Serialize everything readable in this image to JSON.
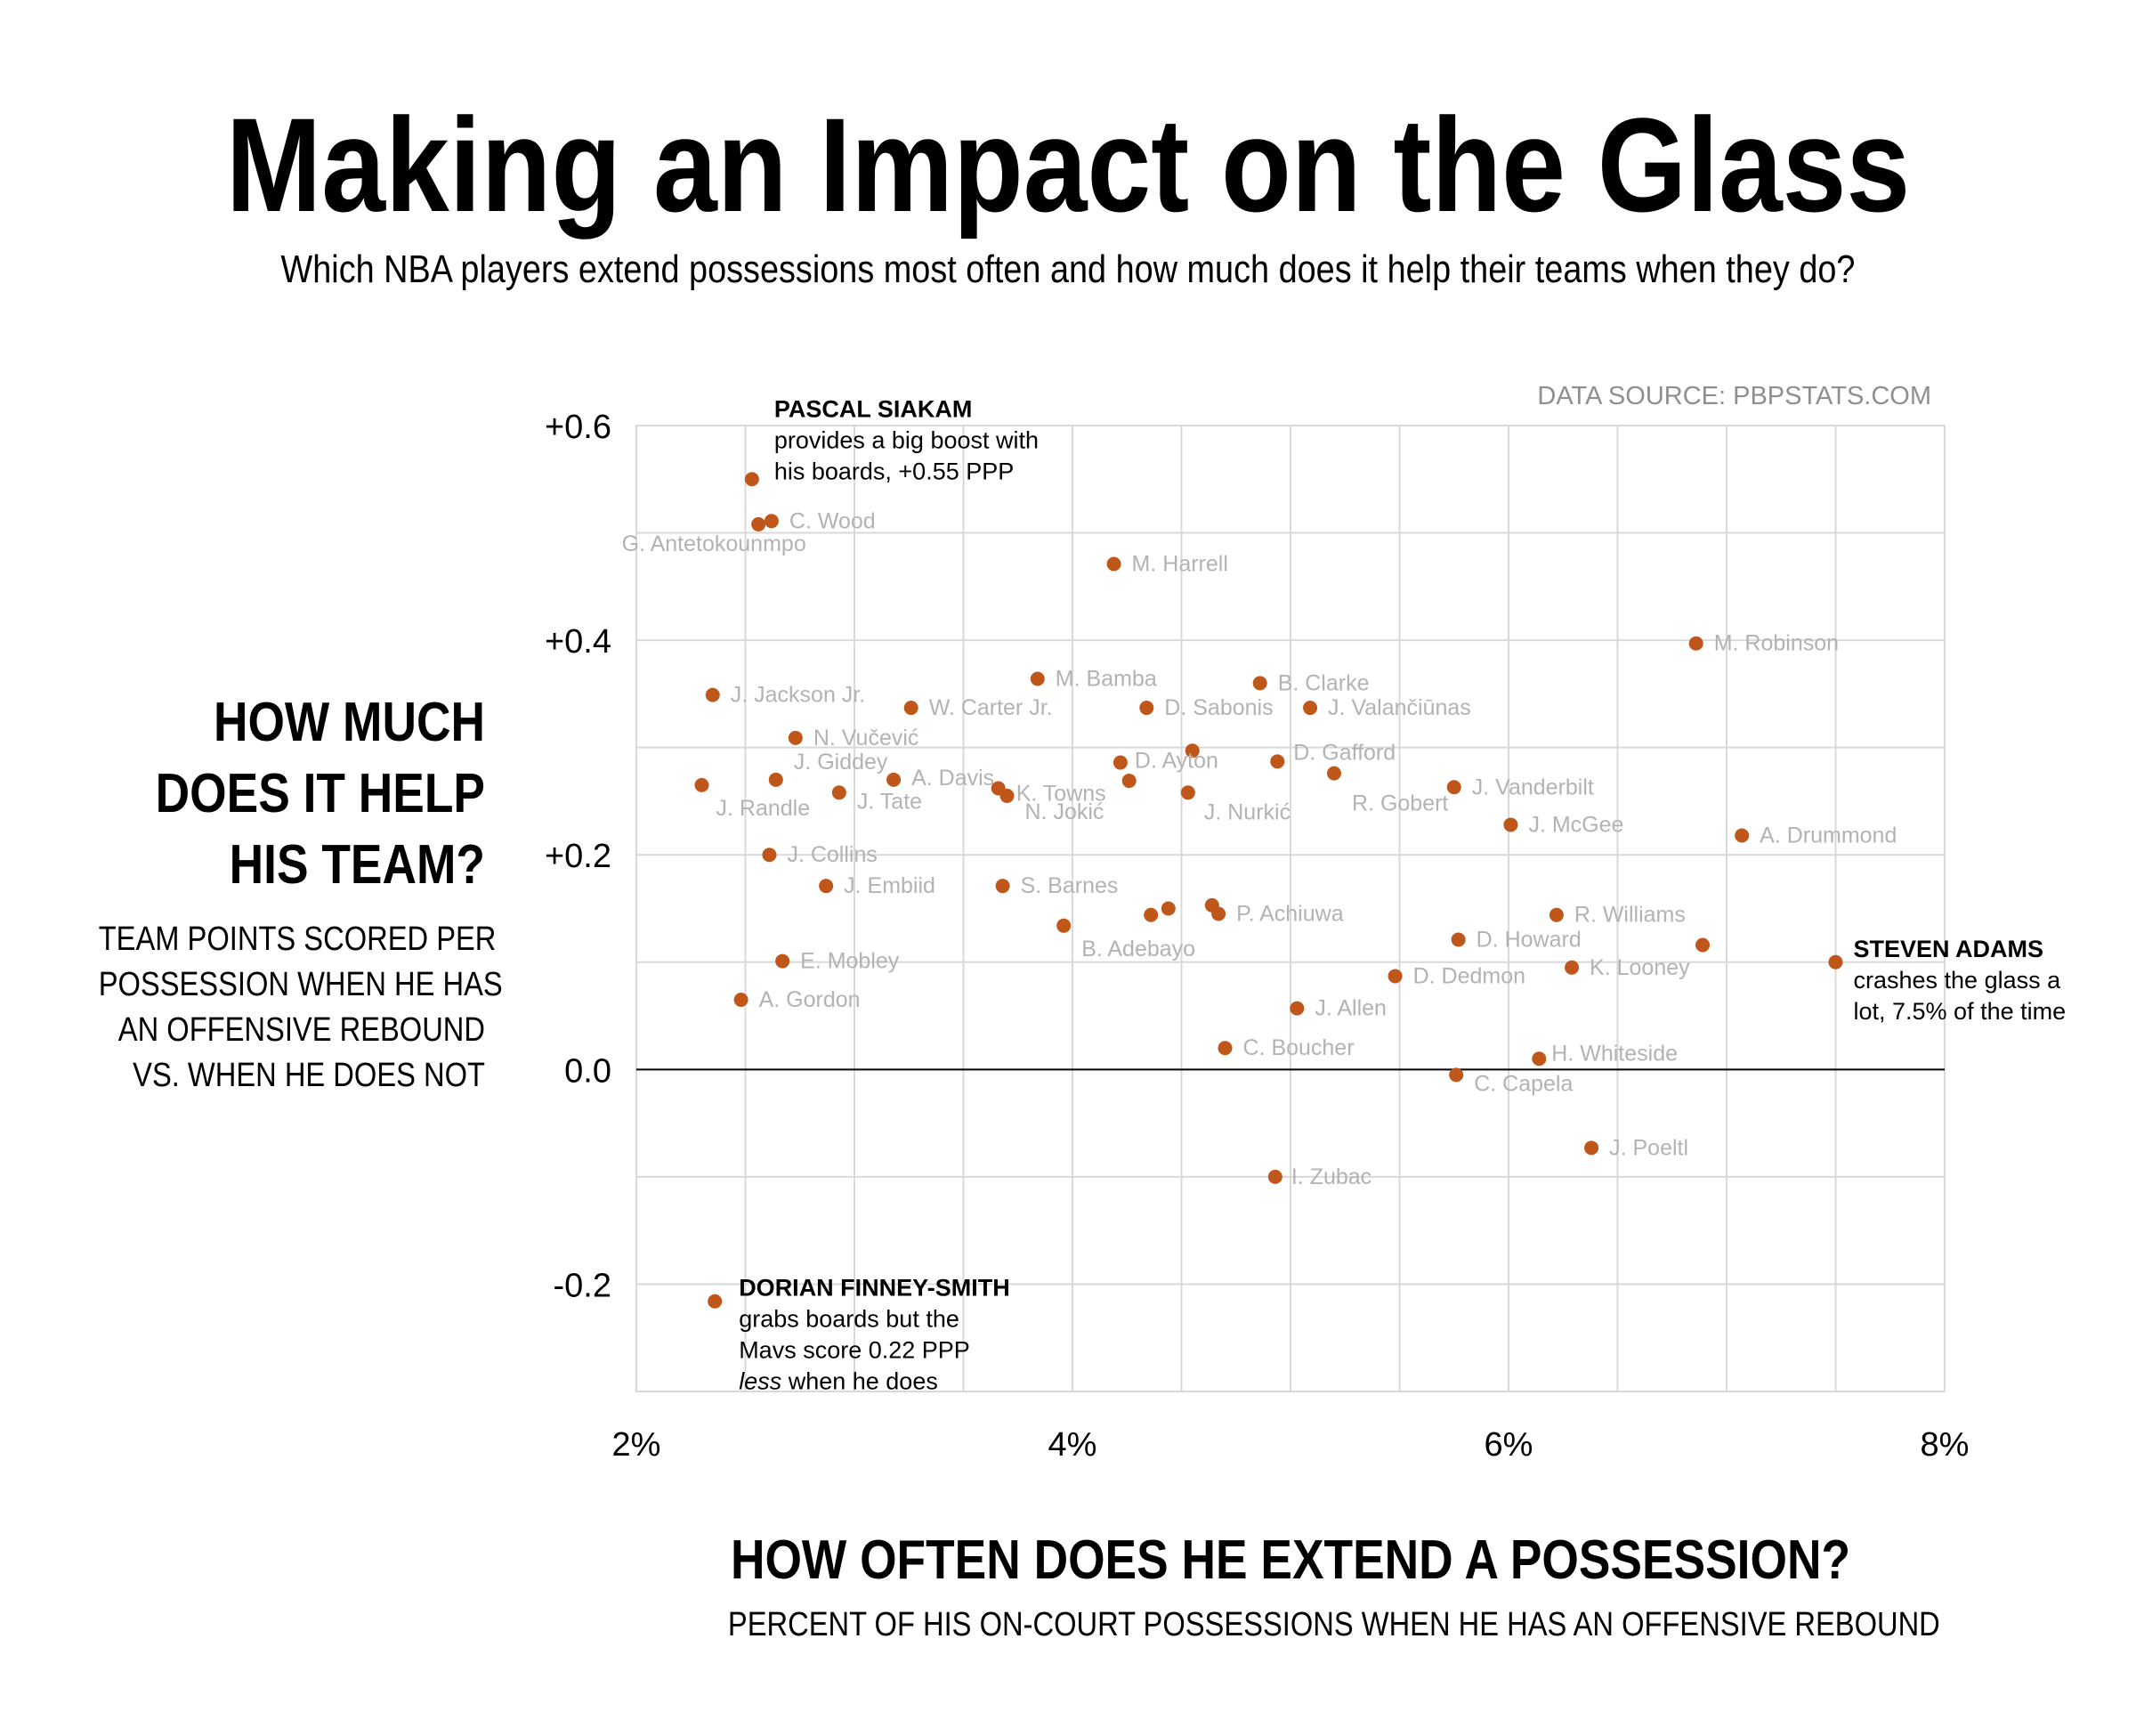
{
  "header": {
    "title": "Making an Impact on the Glass",
    "subtitle": "Which NBA players extend possessions most often and how much does it help their teams when they do?"
  },
  "source": "DATA SOURCE: PBPSTATS.COM",
  "y_axis": {
    "title_lines": [
      "HOW MUCH",
      "DOES IT HELP",
      "HIS TEAM?"
    ],
    "subtitle_lines": [
      "TEAM POINTS SCORED PER",
      "POSSESSION WHEN HE HAS",
      "AN OFFENSIVE REBOUND",
      "VS. WHEN HE DOES NOT"
    ]
  },
  "x_axis": {
    "title": "HOW OFTEN DOES HE EXTEND A POSSESSION?",
    "subtitle": "PERCENT OF HIS ON-COURT POSSESSIONS WHEN HE HAS AN OFFENSIVE REBOUND"
  },
  "colors": {
    "point": "#c0571a",
    "label": "#b3b3b3",
    "grid": "#d9d9d9",
    "zero_line": "#000000"
  },
  "chart_data": {
    "type": "scatter",
    "xlim": [
      2,
      8
    ],
    "ylim": [
      -0.3,
      0.6
    ],
    "x_ticks": [
      2,
      4,
      6,
      8
    ],
    "x_tick_labels": [
      "2%",
      "4%",
      "6%",
      "8%"
    ],
    "x_minor_gridlines": [
      2.5,
      3,
      3.5,
      4,
      4.5,
      5,
      5.5,
      6,
      6.5,
      7,
      7.5,
      8
    ],
    "y_ticks": [
      0.6,
      0.4,
      0.2,
      0,
      -0.2
    ],
    "y_tick_labels": [
      "+0.6",
      "+0.4",
      "+0.2",
      "0.0",
      "-0.2"
    ],
    "y_minor_gridlines": [
      0.6,
      0.5,
      0.4,
      0.3,
      0.2,
      0.1,
      -0.1,
      -0.2
    ],
    "grid": true,
    "points": [
      {
        "name": "G. Antetokounmpo",
        "x": 2.56,
        "y": 0.508
      },
      {
        "name": "C. Wood",
        "x": 2.62,
        "y": 0.511
      },
      {
        "name": "M. Harrell",
        "x": 4.19,
        "y": 0.471
      },
      {
        "name": "M. Robinson",
        "x": 6.86,
        "y": 0.397
      },
      {
        "name": "J. Jackson Jr.",
        "x": 2.35,
        "y": 0.349
      },
      {
        "name": "W. Carter Jr.",
        "x": 3.26,
        "y": 0.337
      },
      {
        "name": "M. Bamba",
        "x": 3.84,
        "y": 0.364
      },
      {
        "name": "D. Sabonis",
        "x": 4.34,
        "y": 0.337
      },
      {
        "name": "B. Clarke",
        "x": 4.86,
        "y": 0.36
      },
      {
        "name": "J. Valančiūnas",
        "x": 5.09,
        "y": 0.337
      },
      {
        "name": "N. Vučević",
        "x": 2.73,
        "y": 0.309
      },
      {
        "name": "J. Giddey",
        "x": 2.64,
        "y": 0.27
      },
      {
        "name": "A. Davis",
        "x": 3.18,
        "y": 0.27
      },
      {
        "name": "J. Randle",
        "x": 2.3,
        "y": 0.265
      },
      {
        "name": "J. Tate",
        "x": 2.93,
        "y": 0.258
      },
      {
        "name": "K. Towns",
        "x": 3.66,
        "y": 0.262
      },
      {
        "name": "N. Jokić",
        "x": 3.7,
        "y": 0.255
      },
      {
        "name": "D. Ayton",
        "x": 4.22,
        "y": 0.286
      },
      {
        "name": "",
        "x": 4.26,
        "y": 0.269
      },
      {
        "name": "",
        "x": 4.55,
        "y": 0.297
      },
      {
        "name": "J. Nurkić",
        "x": 4.53,
        "y": 0.258
      },
      {
        "name": "D. Gafford",
        "x": 4.94,
        "y": 0.287
      },
      {
        "name": "R. Gobert",
        "x": 5.2,
        "y": 0.276
      },
      {
        "name": "J. Vanderbilt",
        "x": 5.75,
        "y": 0.263
      },
      {
        "name": "J. McGee",
        "x": 6.01,
        "y": 0.228
      },
      {
        "name": "A. Drummond",
        "x": 7.07,
        "y": 0.218
      },
      {
        "name": "J. Collins",
        "x": 2.61,
        "y": 0.2
      },
      {
        "name": "J. Embiid",
        "x": 2.87,
        "y": 0.171
      },
      {
        "name": "S. Barnes",
        "x": 3.68,
        "y": 0.171
      },
      {
        "name": "B. Adebayo",
        "x": 3.96,
        "y": 0.134
      },
      {
        "name": "",
        "x": 4.36,
        "y": 0.144
      },
      {
        "name": "",
        "x": 4.44,
        "y": 0.15
      },
      {
        "name": "",
        "x": 4.64,
        "y": 0.153
      },
      {
        "name": "P. Achiuwa",
        "x": 4.67,
        "y": 0.145
      },
      {
        "name": "R. Williams",
        "x": 6.22,
        "y": 0.144
      },
      {
        "name": "D. Howard",
        "x": 5.77,
        "y": 0.121
      },
      {
        "name": "",
        "x": 6.89,
        "y": 0.116
      },
      {
        "name": "K. Looney",
        "x": 6.29,
        "y": 0.095
      },
      {
        "name": "D. Dedmon",
        "x": 5.48,
        "y": 0.087
      },
      {
        "name": "E. Mobley",
        "x": 2.67,
        "y": 0.101
      },
      {
        "name": "A. Gordon",
        "x": 2.48,
        "y": 0.065
      },
      {
        "name": "J. Allen",
        "x": 5.03,
        "y": 0.057
      },
      {
        "name": "C. Boucher",
        "x": 4.7,
        "y": 0.02
      },
      {
        "name": "H. Whiteside",
        "x": 6.14,
        "y": 0.01
      },
      {
        "name": "C. Capela",
        "x": 5.76,
        "y": -0.005
      },
      {
        "name": "J. Poeltl",
        "x": 6.38,
        "y": -0.073
      },
      {
        "name": "I. Zubac",
        "x": 4.93,
        "y": -0.1
      },
      {
        "name": "PASCAL SIAKAM",
        "x": 2.53,
        "y": 0.55,
        "highlight": true
      },
      {
        "name": "STEVEN ADAMS",
        "x": 7.5,
        "y": 0.1,
        "highlight": true
      },
      {
        "name": "DORIAN FINNEY-SMITH",
        "x": 2.36,
        "y": -0.216,
        "highlight": true
      }
    ],
    "annotations": [
      {
        "target": "PASCAL SIAKAM",
        "lines": [
          "provides a big boost with",
          "his boards,  +0.55 PPP"
        ]
      },
      {
        "target": "STEVEN ADAMS",
        "lines": [
          "crashes the glass a",
          "lot, 7.5% of the time"
        ]
      },
      {
        "target": "DORIAN FINNEY-SMITH",
        "lines": [
          "grabs boards but the",
          "Mavs score 0.22 PPP",
          "less",
          " when he does"
        ]
      }
    ]
  }
}
